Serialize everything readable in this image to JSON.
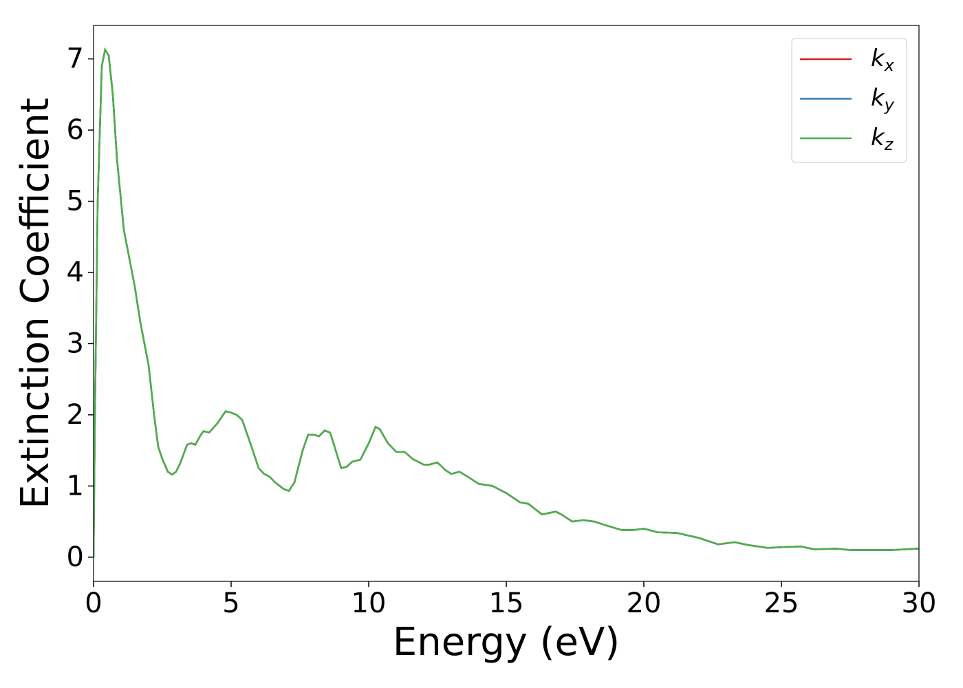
{
  "chart_data": {
    "type": "line",
    "xlabel": "Energy (eV)",
    "ylabel": "Extinction Coefficient",
    "x": [
      0,
      0.05,
      0.15,
      0.3,
      0.42,
      0.55,
      0.7,
      0.85,
      1.0,
      1.1,
      1.3,
      1.5,
      1.7,
      2.0,
      2.2,
      2.35,
      2.5,
      2.7,
      2.85,
      3.0,
      3.15,
      3.4,
      3.55,
      3.7,
      3.9,
      4.0,
      4.2,
      4.5,
      4.8,
      5.0,
      5.2,
      5.4,
      5.7,
      6.0,
      6.2,
      6.4,
      6.6,
      6.9,
      7.1,
      7.3,
      7.6,
      7.8,
      8.0,
      8.2,
      8.4,
      8.6,
      8.8,
      9.0,
      9.2,
      9.4,
      9.7,
      10.0,
      10.25,
      10.4,
      10.7,
      11.0,
      11.3,
      11.6,
      12.0,
      12.2,
      12.5,
      12.8,
      13.0,
      13.3,
      13.6,
      14.0,
      14.5,
      15.0,
      15.5,
      15.8,
      16.3,
      16.8,
      17.0,
      17.4,
      17.8,
      18.2,
      18.6,
      19.2,
      19.6,
      20.0,
      20.5,
      21.2,
      22.0,
      22.7,
      23.3,
      23.8,
      24.5,
      25.0,
      25.7,
      26.2,
      27.0,
      27.5,
      28.5,
      29.0,
      30.0
    ],
    "series": [
      {
        "name": "kx",
        "color": "#e41a1c",
        "values": [
          0,
          2,
          5,
          6.9,
          7.13,
          7.05,
          6.5,
          5.6,
          5.0,
          4.6,
          4.2,
          3.8,
          3.3,
          2.7,
          2.0,
          1.55,
          1.38,
          1.2,
          1.16,
          1.2,
          1.32,
          1.58,
          1.6,
          1.58,
          1.72,
          1.77,
          1.75,
          1.88,
          2.05,
          2.03,
          2.0,
          1.93,
          1.6,
          1.25,
          1.17,
          1.13,
          1.05,
          0.96,
          0.93,
          1.05,
          1.5,
          1.72,
          1.72,
          1.7,
          1.78,
          1.75,
          1.5,
          1.25,
          1.27,
          1.34,
          1.37,
          1.6,
          1.83,
          1.8,
          1.6,
          1.48,
          1.48,
          1.38,
          1.3,
          1.3,
          1.33,
          1.22,
          1.17,
          1.2,
          1.13,
          1.03,
          1.0,
          0.9,
          0.77,
          0.75,
          0.6,
          0.64,
          0.6,
          0.5,
          0.52,
          0.5,
          0.45,
          0.38,
          0.38,
          0.4,
          0.35,
          0.34,
          0.27,
          0.18,
          0.21,
          0.17,
          0.13,
          0.14,
          0.15,
          0.11,
          0.12,
          0.1,
          0.1,
          0.1,
          0.12
        ]
      },
      {
        "name": "ky",
        "color": "#377eb8",
        "values": [
          0,
          2,
          5,
          6.9,
          7.13,
          7.05,
          6.5,
          5.6,
          5.0,
          4.6,
          4.2,
          3.8,
          3.3,
          2.7,
          2.0,
          1.55,
          1.38,
          1.2,
          1.16,
          1.2,
          1.32,
          1.58,
          1.6,
          1.58,
          1.72,
          1.77,
          1.75,
          1.88,
          2.05,
          2.03,
          2.0,
          1.93,
          1.6,
          1.25,
          1.17,
          1.13,
          1.05,
          0.96,
          0.93,
          1.05,
          1.5,
          1.72,
          1.72,
          1.7,
          1.78,
          1.75,
          1.5,
          1.25,
          1.27,
          1.34,
          1.37,
          1.6,
          1.83,
          1.8,
          1.6,
          1.48,
          1.48,
          1.38,
          1.3,
          1.3,
          1.33,
          1.22,
          1.17,
          1.2,
          1.13,
          1.03,
          1.0,
          0.9,
          0.77,
          0.75,
          0.6,
          0.64,
          0.6,
          0.5,
          0.52,
          0.5,
          0.45,
          0.38,
          0.38,
          0.4,
          0.35,
          0.34,
          0.27,
          0.18,
          0.21,
          0.17,
          0.13,
          0.14,
          0.15,
          0.11,
          0.12,
          0.1,
          0.1,
          0.1,
          0.12
        ]
      },
      {
        "name": "kz",
        "color": "#4daf4a",
        "values": [
          0,
          2,
          5,
          6.9,
          7.13,
          7.05,
          6.5,
          5.6,
          5.0,
          4.6,
          4.2,
          3.8,
          3.3,
          2.7,
          2.0,
          1.55,
          1.38,
          1.2,
          1.16,
          1.2,
          1.32,
          1.58,
          1.6,
          1.58,
          1.72,
          1.77,
          1.75,
          1.88,
          2.05,
          2.03,
          2.0,
          1.93,
          1.6,
          1.25,
          1.17,
          1.13,
          1.05,
          0.96,
          0.93,
          1.05,
          1.5,
          1.72,
          1.72,
          1.7,
          1.78,
          1.75,
          1.5,
          1.25,
          1.27,
          1.34,
          1.37,
          1.6,
          1.83,
          1.8,
          1.6,
          1.48,
          1.48,
          1.38,
          1.3,
          1.3,
          1.33,
          1.22,
          1.17,
          1.2,
          1.13,
          1.03,
          1.0,
          0.9,
          0.77,
          0.75,
          0.6,
          0.64,
          0.6,
          0.5,
          0.52,
          0.5,
          0.45,
          0.38,
          0.38,
          0.4,
          0.35,
          0.34,
          0.27,
          0.18,
          0.21,
          0.17,
          0.13,
          0.14,
          0.15,
          0.11,
          0.12,
          0.1,
          0.1,
          0.1,
          0.12
        ]
      }
    ],
    "xlim": [
      0,
      30
    ],
    "xticks": [
      0,
      5,
      10,
      15,
      20,
      25,
      30
    ],
    "ylim": [
      -0.34,
      7.47
    ],
    "yticks": [
      0,
      1,
      2,
      3,
      4,
      5,
      6,
      7
    ],
    "grid": false,
    "legend": "upper right"
  }
}
